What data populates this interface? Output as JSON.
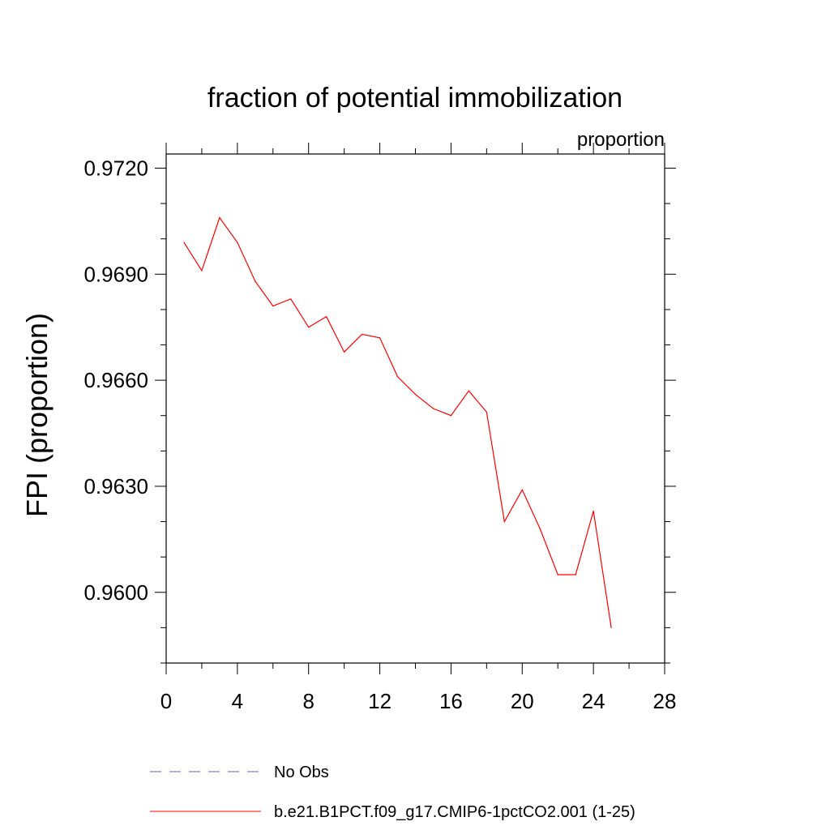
{
  "chart_data": {
    "type": "line",
    "title": "fraction of potential immobilization",
    "units_label": "proportion",
    "xlabel": "",
    "ylabel": "FPI  (proportion)",
    "xlim": [
      0,
      28
    ],
    "ylim": [
      0.958,
      0.9724
    ],
    "x_ticks": [
      0,
      4,
      8,
      12,
      16,
      20,
      24,
      28
    ],
    "x_tick_labels": [
      "0",
      "4",
      "8",
      "12",
      "16",
      "20",
      "24",
      "28"
    ],
    "y_ticks": [
      0.96,
      0.963,
      0.966,
      0.969,
      0.972
    ],
    "y_tick_labels": [
      "0.9600",
      "0.9630",
      "0.9660",
      "0.9690",
      "0.9720"
    ],
    "grid": false,
    "legend_position": "bottom",
    "series": [
      {
        "name": "No Obs",
        "color": "#6a5acd",
        "dash": "dashed",
        "x": [],
        "y": []
      },
      {
        "name": "b.e21.B1PCT.f09_g17.CMIP6-1pctCO2.001 (1-25)",
        "color": "#ff0000",
        "dash": "solid",
        "x": [
          1,
          2,
          3,
          4,
          5,
          6,
          7,
          8,
          9,
          10,
          11,
          12,
          13,
          14,
          15,
          16,
          17,
          18,
          19,
          20,
          21,
          22,
          23,
          24,
          25
        ],
        "y": [
          0.9699,
          0.9691,
          0.9706,
          0.9699,
          0.9688,
          0.9681,
          0.9683,
          0.9675,
          0.9678,
          0.9668,
          0.9673,
          0.9672,
          0.9661,
          0.9656,
          0.9652,
          0.965,
          0.9657,
          0.9651,
          0.962,
          0.9629,
          0.9618,
          0.9605,
          0.9605,
          0.9623,
          0.959
        ]
      }
    ]
  }
}
